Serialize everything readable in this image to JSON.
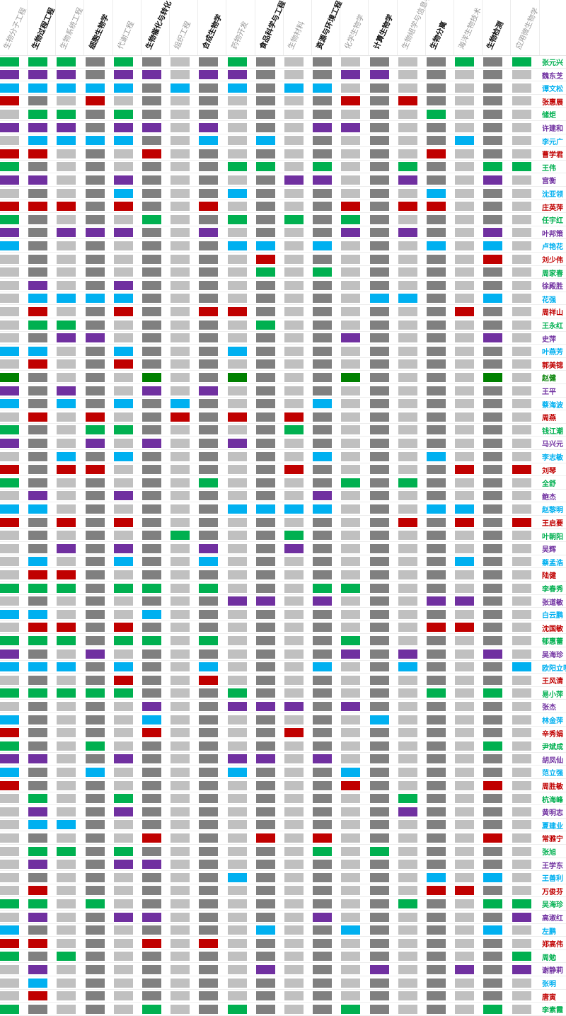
{
  "palette": {
    "G": "#00b050",
    "P": "#7030a0",
    "C": "#00b0f0",
    "R": "#c00000",
    "D": "#008000",
    "dark_gray": "#808080",
    "light_gray": "#c0c0c0"
  },
  "columns": [
    {
      "label": "生物分子工程",
      "bold": false
    },
    {
      "label": "生物过程工程",
      "bold": true
    },
    {
      "label": "生物系统工程",
      "bold": false
    },
    {
      "label": "细胞生物学",
      "bold": true
    },
    {
      "label": "代谢工程",
      "bold": false
    },
    {
      "label": "生物催化与转化",
      "bold": true
    },
    {
      "label": "组织工程",
      "bold": false
    },
    {
      "label": "合成生物学",
      "bold": true
    },
    {
      "label": "药物开发",
      "bold": false
    },
    {
      "label": "食品科学与工程",
      "bold": true
    },
    {
      "label": "生物材料",
      "bold": false
    },
    {
      "label": "资源与环境工程",
      "bold": true
    },
    {
      "label": "化学生物学",
      "bold": false
    },
    {
      "label": "计算生物学",
      "bold": true
    },
    {
      "label": "生物组学与信息学",
      "bold": false
    },
    {
      "label": "生物分离",
      "bold": true
    },
    {
      "label": "海洋生物技术",
      "bold": false
    },
    {
      "label": "生物检测",
      "bold": true
    },
    {
      "label": "应用微生物学",
      "bold": false
    }
  ],
  "rows": [
    {
      "name": "张元兴",
      "color": "G",
      "cells": "1110100010000000101"
    },
    {
      "name": "魏东芝",
      "color": "P",
      "cells": "1110110110001100000"
    },
    {
      "name": "谭文松",
      "color": "C",
      "cells": "1111101010110000000"
    },
    {
      "name": "张惠展",
      "color": "R",
      "cells": "1001000000001010000"
    },
    {
      "name": "储炬",
      "color": "G",
      "cells": "0110100000000001000"
    },
    {
      "name": "许建和",
      "color": "P",
      "cells": "1110110100011000000"
    },
    {
      "name": "李元广",
      "color": "C",
      "cells": "0111100101000000100"
    },
    {
      "name": "曹学君",
      "color": "R",
      "cells": "1100010000000001000"
    },
    {
      "name": "王伟",
      "color": "G",
      "cells": "1000000011010010011"
    },
    {
      "name": "宫衡",
      "color": "P",
      "cells": "1100100000110010010"
    },
    {
      "name": "沈亚领",
      "color": "C",
      "cells": "0000100010000001000"
    },
    {
      "name": "庄英萍",
      "color": "R",
      "cells": "1110100100001011000"
    },
    {
      "name": "任宇红",
      "color": "G",
      "cells": "1000010010101000000"
    },
    {
      "name": "叶邦策",
      "color": "P",
      "cells": "1011100100001010010"
    },
    {
      "name": "卢艳花",
      "color": "C",
      "cells": "1000000011010001010"
    },
    {
      "name": "刘少伟",
      "color": "R",
      "cells": "0000000001000000010"
    },
    {
      "name": "周家春",
      "color": "G",
      "cells": "0000000001010000000"
    },
    {
      "name": "徐殿胜",
      "color": "P",
      "cells": "0100100000000000000"
    },
    {
      "name": "花强",
      "color": "C",
      "cells": "0111100000000110010"
    },
    {
      "name": "周祥山",
      "color": "R",
      "cells": "0100100110000000100"
    },
    {
      "name": "王永红",
      "color": "G",
      "cells": "0110000001000000000"
    },
    {
      "name": "史萍",
      "color": "P",
      "cells": "0011000000001000010"
    },
    {
      "name": "叶燕芳",
      "color": "C",
      "cells": "1100100010000000000"
    },
    {
      "name": "郭美锦",
      "color": "R",
      "cells": "0100100000000000000"
    },
    {
      "name": "赵健",
      "color": "D",
      "cells": "1000010010001000010"
    },
    {
      "name": "王平",
      "color": "P",
      "cells": "1010010100000000000"
    },
    {
      "name": "蔡海波",
      "color": "C",
      "cells": "1010101000010000000"
    },
    {
      "name": "周燕",
      "color": "R",
      "cells": "0101001010100000000"
    },
    {
      "name": "钱江潮",
      "color": "G",
      "cells": "1001100000100000000"
    },
    {
      "name": "马兴元",
      "color": "P",
      "cells": "1001010010000000000"
    },
    {
      "name": "李志敏",
      "color": "C",
      "cells": "0010100000010001000"
    },
    {
      "name": "刘琴",
      "color": "R",
      "cells": "1011000000100000101"
    },
    {
      "name": "全舒",
      "color": "G",
      "cells": "1000000100001010000"
    },
    {
      "name": "鲍杰",
      "color": "P",
      "cells": "0100100000010000000"
    },
    {
      "name": "赵黎明",
      "color": "C",
      "cells": "1100000011110001100"
    },
    {
      "name": "王启要",
      "color": "R",
      "cells": "1010100000000010101"
    },
    {
      "name": "叶朝阳",
      "color": "G",
      "cells": "0000001000100000000"
    },
    {
      "name": "吴辉",
      "color": "P",
      "cells": "0010100100100000000"
    },
    {
      "name": "蔡孟浩",
      "color": "C",
      "cells": "0100100100000000100"
    },
    {
      "name": "陆健",
      "color": "R",
      "cells": "0110000000000000000"
    },
    {
      "name": "李春秀",
      "color": "G",
      "cells": "1110110100011000000"
    },
    {
      "name": "张道敏",
      "color": "P",
      "cells": "0000000011010001100"
    },
    {
      "name": "白云鹏",
      "color": "C",
      "cells": "1100010000000000000"
    },
    {
      "name": "沈国敏",
      "color": "R",
      "cells": "0110100000000001100"
    },
    {
      "name": "郁惠蕾",
      "color": "G",
      "cells": "1110110100001000000"
    },
    {
      "name": "吴海珍",
      "color": "P",
      "cells": "1001000000001010010"
    },
    {
      "name": "欧阳立明",
      "color": "C",
      "cells": "1110100100010010001"
    },
    {
      "name": "王风清",
      "color": "R",
      "cells": "0000100100000000000"
    },
    {
      "name": "易小萍",
      "color": "G",
      "cells": "1111100010000001010"
    },
    {
      "name": "张杰",
      "color": "P",
      "cells": "0000010011101000000"
    },
    {
      "name": "林金萍",
      "color": "C",
      "cells": "1000010000000100000"
    },
    {
      "name": "辛秀娟",
      "color": "R",
      "cells": "1000010000100000000"
    },
    {
      "name": "尹斌成",
      "color": "G",
      "cells": "1001000000000000010"
    },
    {
      "name": "胡凤仙",
      "color": "P",
      "cells": "1100100011010000000"
    },
    {
      "name": "范立强",
      "color": "C",
      "cells": "1001000010001000000"
    },
    {
      "name": "周胜敏",
      "color": "R",
      "cells": "1000000000001000010"
    },
    {
      "name": "杭海峰",
      "color": "G",
      "cells": "0100100000000010000"
    },
    {
      "name": "黄明志",
      "color": "P",
      "cells": "0100100000000010000"
    },
    {
      "name": "夏建业",
      "color": "C",
      "cells": "0110000000000000000"
    },
    {
      "name": "常雅宁",
      "color": "R",
      "cells": "0000010001010000010"
    },
    {
      "name": "张旭",
      "color": "G",
      "cells": "0110100000010100000"
    },
    {
      "name": "王学东",
      "color": "P",
      "cells": "0100110000000000000"
    },
    {
      "name": "王善利",
      "color": "C",
      "cells": "0000000010000001010"
    },
    {
      "name": "万俊芬",
      "color": "R",
      "cells": "0100000000000001100"
    },
    {
      "name": "吴海珍",
      "color": "G",
      "cells": "1101000000000010011"
    },
    {
      "name": "高淑红",
      "color": "P",
      "cells": "0100110000010000001"
    },
    {
      "name": "左鹏",
      "color": "C",
      "cells": "1000000001001000010"
    },
    {
      "name": "郑高伟",
      "color": "R",
      "cells": "1100010100000000000"
    },
    {
      "name": "周勉",
      "color": "G",
      "cells": "1010000000000000001"
    },
    {
      "name": "谢静莉",
      "color": "P",
      "cells": "0100000001000100101"
    },
    {
      "name": "张明",
      "color": "C",
      "cells": "0100000000000000000"
    },
    {
      "name": "唐寅",
      "color": "R",
      "cells": "0100000000000000000"
    },
    {
      "name": "李素霞",
      "color": "G",
      "cells": "1000010010001000010"
    }
  ]
}
